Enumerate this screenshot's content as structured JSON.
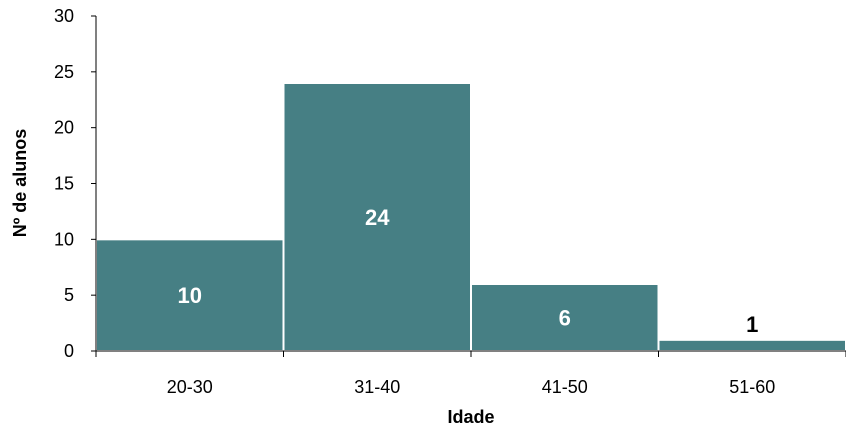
{
  "chart_data": {
    "type": "bar",
    "categories": [
      "20-30",
      "31-40",
      "41-50",
      "51-60"
    ],
    "values": [
      10,
      24,
      6,
      1
    ],
    "data_labels": [
      "10",
      "24",
      "6",
      "1"
    ],
    "title": "",
    "xlabel": "Idade",
    "ylabel": "Nº de alunos",
    "ylim": [
      0,
      30
    ],
    "yticks": [
      "0",
      "5",
      "10",
      "15",
      "20",
      "25",
      "30"
    ],
    "grid": false,
    "legend": "none",
    "colors": {
      "bar_fill": "#467F84",
      "bar_edge": "#ffffff",
      "axis": "#000000",
      "label_inside": "#ffffff",
      "label_outside": "#000000"
    }
  }
}
